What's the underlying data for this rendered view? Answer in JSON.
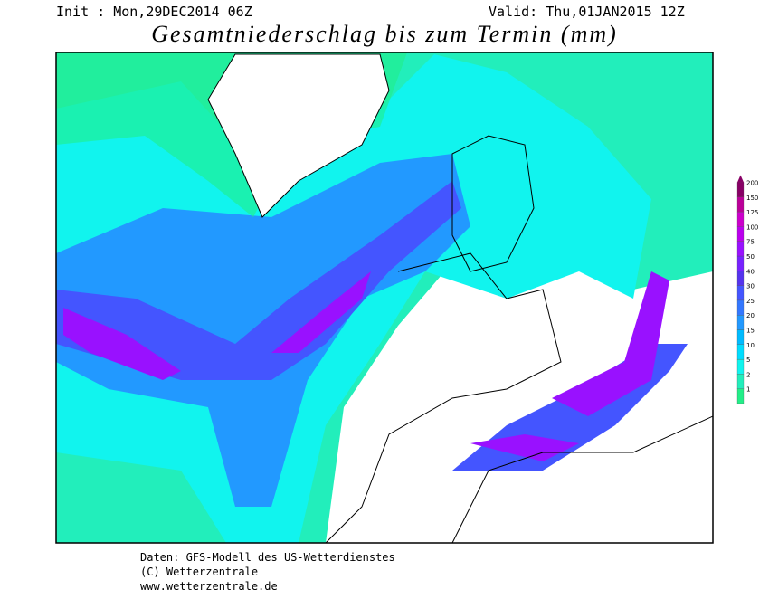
{
  "header": {
    "init": "Init : Mon,29DEC2014 06Z",
    "valid": "Valid: Thu,01JAN2015 12Z",
    "title": "Gesamtniederschlag bis zum Termin (mm)"
  },
  "legend": {
    "levels": [
      {
        "value": 1,
        "color": "#22ee88"
      },
      {
        "value": 2,
        "color": "#22eebb"
      },
      {
        "value": 5,
        "color": "#11f4ee"
      },
      {
        "value": 10,
        "color": "#00ddff"
      },
      {
        "value": 15,
        "color": "#00bbff"
      },
      {
        "value": 20,
        "color": "#2299ff"
      },
      {
        "value": 25,
        "color": "#3377ff"
      },
      {
        "value": 30,
        "color": "#4455ff"
      },
      {
        "value": 40,
        "color": "#5533ee"
      },
      {
        "value": 50,
        "color": "#7722ff"
      },
      {
        "value": 75,
        "color": "#9911ff"
      },
      {
        "value": 100,
        "color": "#bb00ee"
      },
      {
        "value": 125,
        "color": "#cc00cc"
      },
      {
        "value": 150,
        "color": "#bb0099"
      },
      {
        "value": 200,
        "color": "#880066"
      }
    ]
  },
  "footer": {
    "line1": "Daten: GFS-Modell des US-Wetterdienstes",
    "line2": "(C) Wetterzentrale",
    "line3": "www.wetterzentrale.de"
  }
}
